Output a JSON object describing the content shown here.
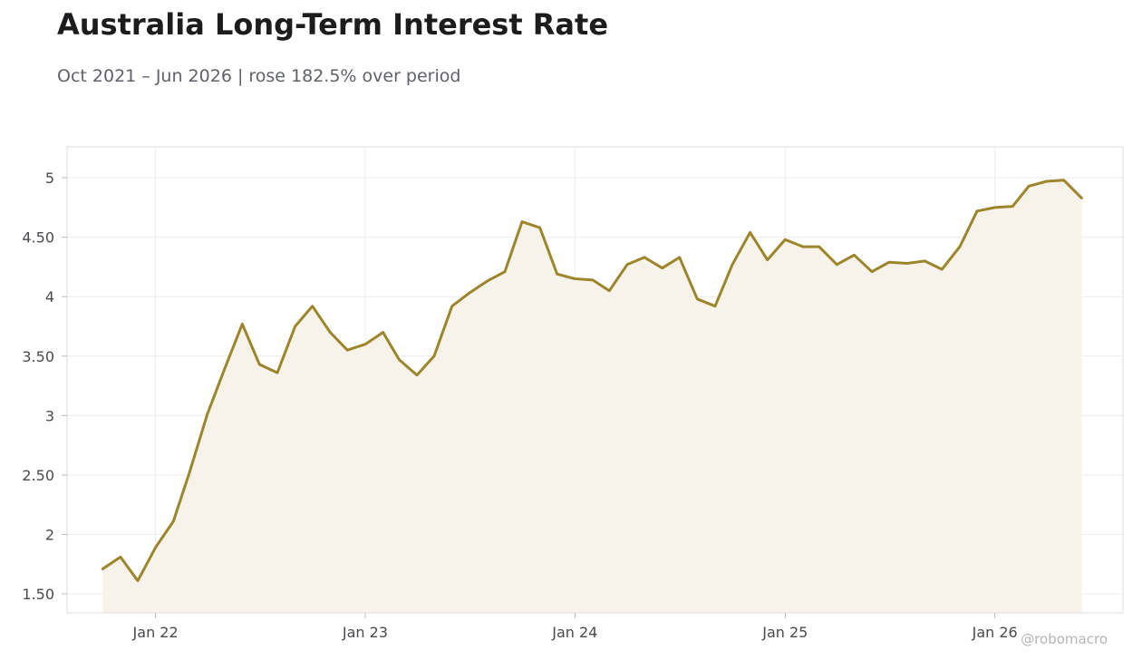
{
  "title": "Australia Long-Term Interest Rate",
  "subtitle": "Oct 2021 – Jun 2026 | rose 182.5% over period",
  "watermark": "@robomacro",
  "colors": {
    "line": "#9c852a",
    "area": "#f7f3eb",
    "grid": "#ececec",
    "frame": "#dddddd"
  },
  "chart_data": {
    "type": "area",
    "title": "Australia Long-Term Interest Rate",
    "xlabel": "",
    "ylabel": "",
    "ylim": [
      1.34,
      5.26
    ],
    "xlim": [
      "2021-07-31",
      "2026-08-12"
    ],
    "grid": true,
    "legend": "none",
    "y_ticks": [
      {
        "value": 1.5,
        "label": "1.50"
      },
      {
        "value": 2,
        "label": "2"
      },
      {
        "value": 2.5,
        "label": "2.50"
      },
      {
        "value": 3,
        "label": "3"
      },
      {
        "value": 3.5,
        "label": "3.50"
      },
      {
        "value": 4,
        "label": "4"
      },
      {
        "value": 4.5,
        "label": "4.50"
      },
      {
        "value": 5,
        "label": "5"
      }
    ],
    "x_ticks": [
      {
        "date": "2022-01-01",
        "label": "Jan 22"
      },
      {
        "date": "2023-01-01",
        "label": "Jan 23"
      },
      {
        "date": "2024-01-01",
        "label": "Jan 24"
      },
      {
        "date": "2025-01-01",
        "label": "Jan 25"
      },
      {
        "date": "2026-01-01",
        "label": "Jan 26"
      }
    ],
    "x": [
      "2021-10",
      "2021-11",
      "2021-12",
      "2022-01",
      "2022-02",
      "2022-03",
      "2022-04",
      "2022-05",
      "2022-06",
      "2022-07",
      "2022-08",
      "2022-09",
      "2022-10",
      "2022-11",
      "2022-12",
      "2023-01",
      "2023-02",
      "2023-03",
      "2023-04",
      "2023-05",
      "2023-06",
      "2023-07",
      "2023-08",
      "2023-09",
      "2023-10",
      "2023-11",
      "2023-12",
      "2024-01",
      "2024-02",
      "2024-03",
      "2024-04",
      "2024-05",
      "2024-06",
      "2024-07",
      "2024-08",
      "2024-09",
      "2024-10",
      "2024-11",
      "2024-12",
      "2025-01",
      "2025-02",
      "2025-03",
      "2025-04",
      "2025-05",
      "2025-06",
      "2025-07",
      "2025-08",
      "2025-09",
      "2025-10",
      "2025-11",
      "2025-12",
      "2026-01",
      "2026-02",
      "2026-03",
      "2026-04",
      "2026-05",
      "2026-06"
    ],
    "series": [
      {
        "values": [
          1.71,
          1.81,
          1.61,
          1.89,
          2.11,
          2.52,
          3.01,
          3.39,
          3.77,
          3.43,
          3.36,
          3.75,
          3.92,
          3.7,
          3.55,
          3.6,
          3.7,
          3.47,
          3.34,
          3.5,
          3.92,
          4.03,
          4.13,
          4.21,
          4.63,
          4.58,
          4.19,
          4.15,
          4.14,
          4.05,
          4.27,
          4.33,
          4.24,
          4.33,
          3.98,
          3.92,
          4.27,
          4.54,
          4.31,
          4.48,
          4.42,
          4.42,
          4.27,
          4.35,
          4.21,
          4.29,
          4.28,
          4.3,
          4.23,
          4.42,
          4.72,
          4.75,
          4.76,
          4.93,
          4.97,
          4.98,
          4.83
        ]
      }
    ]
  }
}
